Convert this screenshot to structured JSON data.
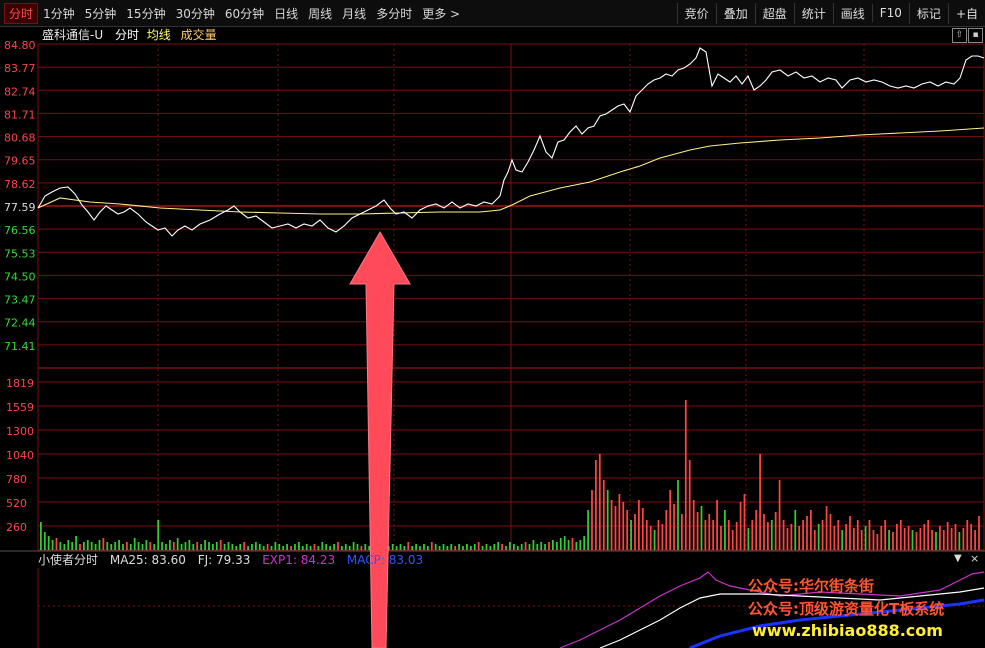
{
  "toolbar": {
    "tabs": [
      "分时",
      "1分钟",
      "5分钟",
      "15分钟",
      "30分钟",
      "60分钟",
      "日线",
      "周线",
      "月线",
      "多分时",
      "更多 >"
    ],
    "active_tab": 0,
    "tools": [
      "竞价",
      "叠加",
      "超盘",
      "统计",
      "画线",
      "F10",
      "标记",
      "+自"
    ]
  },
  "info": {
    "stock_name": "盛科通信-U",
    "mode": "分时",
    "avg_label": "均线",
    "vol_label": "成交量"
  },
  "price_axis": {
    "labels": [
      "84.80",
      "83.77",
      "82.74",
      "81.71",
      "80.68",
      "79.65",
      "78.62",
      "77.59",
      "76.56",
      "75.53",
      "74.50",
      "73.47",
      "72.44",
      "71.41"
    ],
    "pre_close_index": 7,
    "colors": {
      "up": "#ff4444",
      "base": "#dddddd",
      "down": "#33dd33"
    }
  },
  "volume_axis": {
    "labels": [
      "1819",
      "1559",
      "1300",
      "1040",
      "780",
      "520",
      "260"
    ]
  },
  "sub_indicator": {
    "name": "小使者分时",
    "ma25": "MA25: 83.60",
    "fj": "FJ: 79.33",
    "exp1": "EXP1: 84.23",
    "macp": "MACP: 83.03"
  },
  "watermark": {
    "line1": "公众号:华尔街条街",
    "line2": "公众号:顶级游资量化T板系统",
    "line3": "www.zhibiao888.com"
  },
  "colors": {
    "grid": "#7a1010",
    "price_line": "#ffffff",
    "avg_line": "#ffee88",
    "vol_up": "#ff4444",
    "vol_down": "#33cc33",
    "arrow": "#ff4a5a",
    "exp1": "#cc33cc",
    "macp": "#1a33ff"
  }
}
